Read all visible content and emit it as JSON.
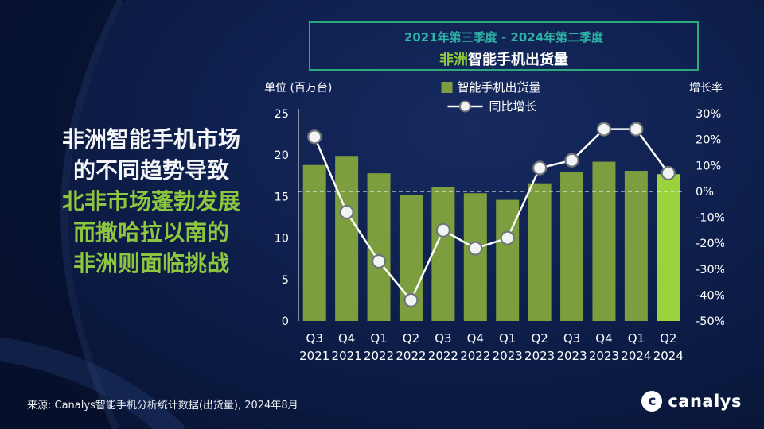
{
  "title_box": {
    "period": "2021年第三季度 - 2024年第二季度",
    "title_highlight": "非洲",
    "title_rest": "智能手机出货量"
  },
  "headline": {
    "line1": "非洲智能手机市场",
    "line2": "的不同趋势导致",
    "line3": "北非市场蓬勃发展",
    "line4": "而撒哈拉以南的",
    "line5": "非洲则面临挑战"
  },
  "chart_data": {
    "type": "combo-bar-line",
    "title": "非洲智能手机出货量",
    "categories_quarter": [
      "Q3",
      "Q4",
      "Q1",
      "Q2",
      "Q3",
      "Q4",
      "Q1",
      "Q2",
      "Q3",
      "Q4",
      "Q1",
      "Q2"
    ],
    "categories_year": [
      "2021",
      "2021",
      "2022",
      "2022",
      "2022",
      "2022",
      "2023",
      "2023",
      "2023",
      "2023",
      "2024",
      "2024"
    ],
    "series": [
      {
        "name": "智能手机出货量",
        "type": "bar",
        "axis": "left",
        "values": [
          18.8,
          19.9,
          17.8,
          15.2,
          16.1,
          15.4,
          14.6,
          16.6,
          18.0,
          19.2,
          18.1,
          17.7
        ]
      },
      {
        "name": "同比增长",
        "type": "line",
        "axis": "right",
        "values_percent": [
          21,
          -8,
          -27,
          -42,
          -15,
          -22,
          -18,
          9,
          12,
          24,
          24,
          7
        ]
      }
    ],
    "left_axis": {
      "label": "单位 (百万台)",
      "min": 0,
      "max": 25,
      "step": 5
    },
    "right_axis": {
      "label": "增长率",
      "min": -50,
      "max": 30,
      "step": 10,
      "suffix": "%"
    },
    "zero_line": true,
    "highlight_last_bar": true,
    "legend_position": "top-center",
    "grid": false
  },
  "footer": {
    "source": "来源: Canalys智能手机分析统计数据(出货量), 2024年8月",
    "logo_mark": "c",
    "logo_text": "canalys"
  },
  "colors": {
    "bar": "#7c9e3e",
    "bar_highlight": "#9bd33e",
    "line": "#ffffff",
    "marker_fill": "#f2f3f4",
    "marker_stroke": "#70757a",
    "accent_green": "#8dc63f",
    "accent_teal": "#2fb3a6",
    "box_border": "#2ea97e",
    "background": "#0d1e4a"
  }
}
